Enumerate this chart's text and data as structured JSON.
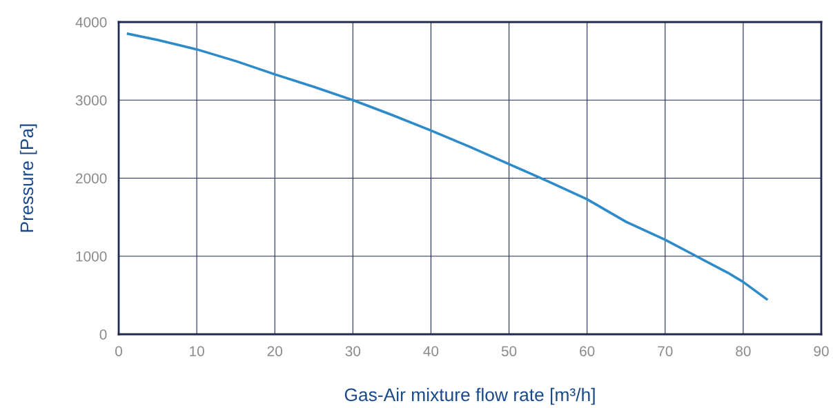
{
  "chart_data": {
    "type": "line",
    "xlabel": "Gas-Air mixture flow rate [m³/h]",
    "ylabel": "Pressure [Pa]",
    "x": [
      1.2,
      5,
      10,
      15,
      20,
      25,
      30,
      35,
      40,
      45,
      50,
      55,
      60,
      65,
      70,
      74,
      78,
      80,
      83
    ],
    "series": [
      {
        "color": "#2e8bc9",
        "values": [
          3850,
          3770,
          3650,
          3500,
          3330,
          3170,
          3000,
          2810,
          2610,
          2400,
          2180,
          1960,
          1730,
          1440,
          1210,
          1000,
          790,
          670,
          450
        ]
      }
    ],
    "xlim": [
      0,
      90
    ],
    "xticks": [
      0,
      10,
      20,
      30,
      40,
      50,
      60,
      70,
      80,
      90
    ],
    "ylim": [
      0,
      4000
    ],
    "yticks": [
      0,
      1000,
      2000,
      3000,
      4000
    ],
    "grid": true,
    "marker": "none",
    "line_style": "solid"
  }
}
